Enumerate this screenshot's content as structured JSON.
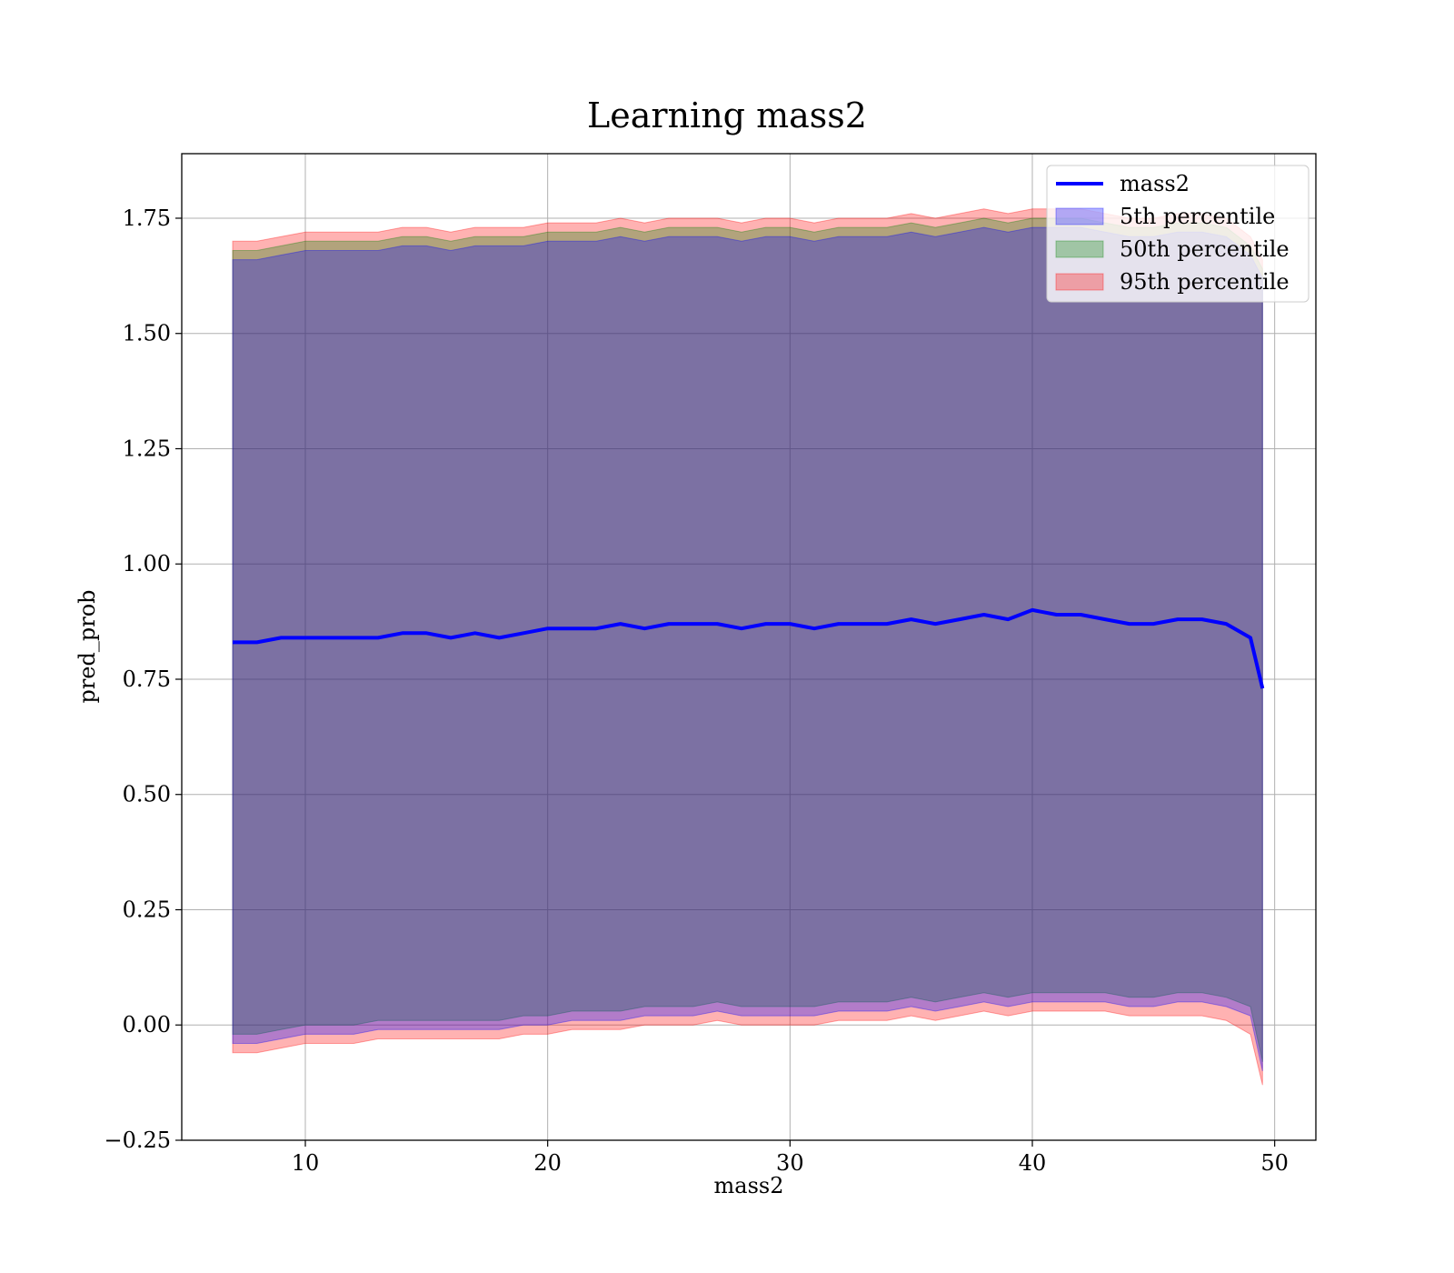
{
  "chart_data": {
    "type": "area",
    "title": "Learning mass2",
    "xlabel": "mass2",
    "ylabel": "pred_prob",
    "xlim": [
      4.9,
      51.7
    ],
    "ylim": [
      -0.25,
      1.89
    ],
    "xticks": [
      10,
      20,
      30,
      40,
      50
    ],
    "xtick_labels": [
      "10",
      "20",
      "30",
      "40",
      "50"
    ],
    "yticks": [
      -0.25,
      0.0,
      0.25,
      0.5,
      0.75,
      1.0,
      1.25,
      1.5,
      1.75
    ],
    "ytick_labels": [
      "−0.25",
      "0.00",
      "0.25",
      "0.50",
      "0.75",
      "1.00",
      "1.25",
      "1.50",
      "1.75"
    ],
    "grid": true,
    "legend_position": "top-right",
    "x": [
      7.0,
      8.0,
      9.0,
      10.0,
      11.0,
      12.0,
      13.0,
      14.0,
      15.0,
      16.0,
      17.0,
      18.0,
      19.0,
      20.0,
      21.0,
      22.0,
      23.0,
      24.0,
      25.0,
      26.0,
      27.0,
      28.0,
      29.0,
      30.0,
      31.0,
      32.0,
      33.0,
      34.0,
      35.0,
      36.0,
      37.0,
      38.0,
      39.0,
      40.0,
      41.0,
      42.0,
      43.0,
      44.0,
      45.0,
      46.0,
      47.0,
      48.0,
      49.0,
      49.5
    ],
    "line": {
      "name": "mass2",
      "color": "#0000ff",
      "values": [
        0.83,
        0.83,
        0.84,
        0.84,
        0.84,
        0.84,
        0.84,
        0.85,
        0.85,
        0.84,
        0.85,
        0.84,
        0.85,
        0.86,
        0.86,
        0.86,
        0.87,
        0.86,
        0.87,
        0.87,
        0.87,
        0.86,
        0.87,
        0.87,
        0.86,
        0.87,
        0.87,
        0.87,
        0.88,
        0.87,
        0.88,
        0.89,
        0.88,
        0.9,
        0.89,
        0.89,
        0.88,
        0.87,
        0.87,
        0.88,
        0.88,
        0.87,
        0.84,
        0.73
      ]
    },
    "bands": [
      {
        "name": "5th percentile",
        "color": "#0000ff",
        "lower": [
          -0.04,
          -0.04,
          -0.03,
          -0.02,
          -0.02,
          -0.02,
          -0.01,
          -0.01,
          -0.01,
          -0.01,
          -0.01,
          -0.01,
          0.0,
          0.0,
          0.01,
          0.01,
          0.01,
          0.02,
          0.02,
          0.02,
          0.03,
          0.02,
          0.02,
          0.02,
          0.02,
          0.03,
          0.03,
          0.03,
          0.04,
          0.03,
          0.04,
          0.05,
          0.04,
          0.05,
          0.05,
          0.05,
          0.05,
          0.04,
          0.04,
          0.05,
          0.05,
          0.04,
          0.02,
          -0.1
        ],
        "upper": [
          1.66,
          1.66,
          1.67,
          1.68,
          1.68,
          1.68,
          1.68,
          1.69,
          1.69,
          1.68,
          1.69,
          1.69,
          1.69,
          1.7,
          1.7,
          1.7,
          1.71,
          1.7,
          1.71,
          1.71,
          1.71,
          1.7,
          1.71,
          1.71,
          1.7,
          1.71,
          1.71,
          1.71,
          1.72,
          1.71,
          1.72,
          1.73,
          1.72,
          1.73,
          1.73,
          1.73,
          1.72,
          1.71,
          1.71,
          1.72,
          1.72,
          1.71,
          1.67,
          1.62
        ]
      },
      {
        "name": "50th percentile",
        "color": "#008000",
        "lower": [
          -0.02,
          -0.02,
          -0.01,
          0.0,
          0.0,
          0.0,
          0.01,
          0.01,
          0.01,
          0.01,
          0.01,
          0.01,
          0.02,
          0.02,
          0.03,
          0.03,
          0.03,
          0.04,
          0.04,
          0.04,
          0.05,
          0.04,
          0.04,
          0.04,
          0.04,
          0.05,
          0.05,
          0.05,
          0.06,
          0.05,
          0.06,
          0.07,
          0.06,
          0.07,
          0.07,
          0.07,
          0.07,
          0.06,
          0.06,
          0.07,
          0.07,
          0.06,
          0.04,
          -0.08
        ],
        "upper": [
          1.68,
          1.68,
          1.69,
          1.7,
          1.7,
          1.7,
          1.7,
          1.71,
          1.71,
          1.7,
          1.71,
          1.71,
          1.71,
          1.72,
          1.72,
          1.72,
          1.73,
          1.72,
          1.73,
          1.73,
          1.73,
          1.72,
          1.73,
          1.73,
          1.72,
          1.73,
          1.73,
          1.73,
          1.74,
          1.73,
          1.74,
          1.75,
          1.74,
          1.75,
          1.75,
          1.75,
          1.74,
          1.73,
          1.73,
          1.74,
          1.74,
          1.73,
          1.69,
          1.64
        ]
      },
      {
        "name": "95th percentile",
        "color": "#ff0000",
        "lower": [
          -0.06,
          -0.06,
          -0.05,
          -0.04,
          -0.04,
          -0.04,
          -0.03,
          -0.03,
          -0.03,
          -0.03,
          -0.03,
          -0.03,
          -0.02,
          -0.02,
          -0.01,
          -0.01,
          -0.01,
          0.0,
          0.0,
          0.0,
          0.01,
          0.0,
          0.0,
          0.0,
          0.0,
          0.01,
          0.01,
          0.01,
          0.02,
          0.01,
          0.02,
          0.03,
          0.02,
          0.03,
          0.03,
          0.03,
          0.03,
          0.02,
          0.02,
          0.02,
          0.02,
          0.01,
          -0.02,
          -0.13
        ],
        "upper": [
          1.7,
          1.7,
          1.71,
          1.72,
          1.72,
          1.72,
          1.72,
          1.73,
          1.73,
          1.72,
          1.73,
          1.73,
          1.73,
          1.74,
          1.74,
          1.74,
          1.75,
          1.74,
          1.75,
          1.75,
          1.75,
          1.74,
          1.75,
          1.75,
          1.74,
          1.75,
          1.75,
          1.75,
          1.76,
          1.75,
          1.76,
          1.77,
          1.76,
          1.77,
          1.77,
          1.77,
          1.76,
          1.75,
          1.75,
          1.76,
          1.76,
          1.75,
          1.71,
          1.66
        ]
      }
    ]
  }
}
